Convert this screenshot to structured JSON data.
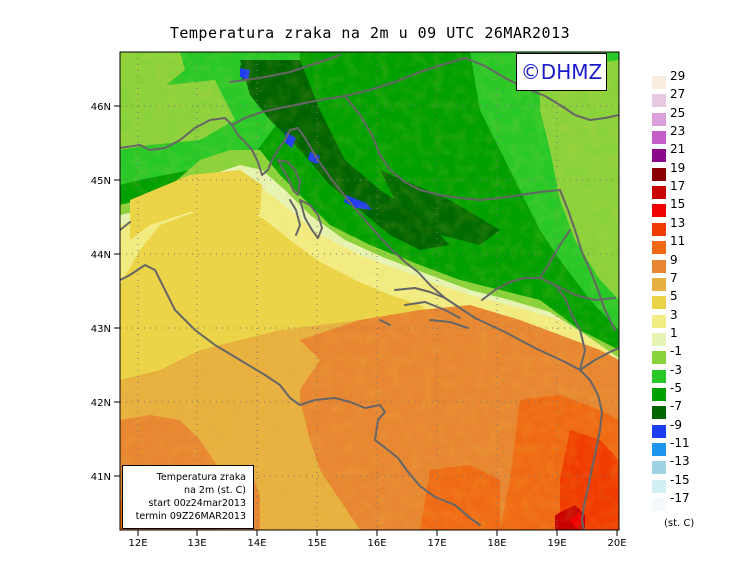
{
  "title": "Temperatura zraka na 2m u 09 UTC 26MAR2013",
  "logo": "©DHMZ",
  "info_box": {
    "line1": "Temperatura zraka",
    "line2": "na 2m (st. C)",
    "line3": "start 00z24mar2013",
    "line4": "termin 09Z26MAR2013"
  },
  "lon_ticks": [
    "12E",
    "13E",
    "14E",
    "15E",
    "16E",
    "17E",
    "18E",
    "19E",
    "20E"
  ],
  "lat_ticks": [
    "46N",
    "45N",
    "44N",
    "43N",
    "42N",
    "41N"
  ],
  "legend": {
    "unit": "(st. C)",
    "items": [
      {
        "label": "29",
        "color": "#f9ece0"
      },
      {
        "label": "27",
        "color": "#e6c8e0"
      },
      {
        "label": "25",
        "color": "#dca0dc"
      },
      {
        "label": "23",
        "color": "#c35ec8"
      },
      {
        "label": "21",
        "color": "#8a0a8a"
      },
      {
        "label": "19",
        "color": "#8a0000"
      },
      {
        "label": "17",
        "color": "#c80000"
      },
      {
        "label": "15",
        "color": "#f00000"
      },
      {
        "label": "13",
        "color": "#f03c00"
      },
      {
        "label": "11",
        "color": "#f06a14"
      },
      {
        "label": "9",
        "color": "#e88632"
      },
      {
        "label": "7",
        "color": "#e8b040"
      },
      {
        "label": "5",
        "color": "#ecd448"
      },
      {
        "label": "3",
        "color": "#f2ec84"
      },
      {
        "label": "1",
        "color": "#e6f4b4"
      },
      {
        "label": "-1",
        "color": "#8ad23c"
      },
      {
        "label": "-3",
        "color": "#28c828"
      },
      {
        "label": "-5",
        "color": "#00a000"
      },
      {
        "label": "-7",
        "color": "#006400"
      },
      {
        "label": "-9",
        "color": "#1e3cf0"
      },
      {
        "label": "-11",
        "color": "#1e96f0"
      },
      {
        "label": "-13",
        "color": "#a0d2e6"
      },
      {
        "label": "-15",
        "color": "#d2f0f4"
      },
      {
        "label": "-17",
        "color": "#f4fafc"
      }
    ]
  }
}
